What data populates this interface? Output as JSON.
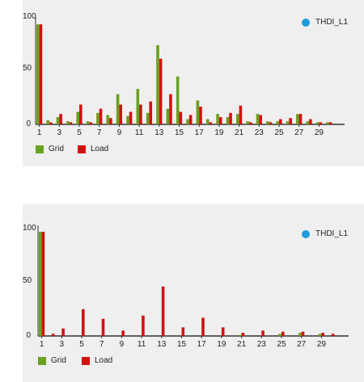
{
  "colors": {
    "grid": "#6aa121",
    "load": "#d11111",
    "badge": "#1f9bdc",
    "panel": "#efefef"
  },
  "chart_data": [
    {
      "type": "bar",
      "badge": "THDI_L1",
      "categories": [
        1,
        2,
        3,
        4,
        5,
        6,
        7,
        8,
        9,
        10,
        11,
        12,
        13,
        14,
        15,
        16,
        17,
        18,
        19,
        20,
        21,
        22,
        23,
        24,
        25,
        26,
        27,
        28,
        29,
        30
      ],
      "x_tick_labels": [
        "1",
        "3",
        "5",
        "7",
        "9",
        "11",
        "13",
        "15",
        "17",
        "19",
        "21",
        "23",
        "25",
        "27",
        "29"
      ],
      "y_ticks": [
        "100",
        "50",
        "0"
      ],
      "ylim": [
        0,
        100
      ],
      "legend_placement": "bottom-left",
      "series": [
        {
          "name": "Grid",
          "values": [
            96,
            4,
            7,
            3,
            12,
            3,
            11,
            9,
            29,
            8,
            34,
            11,
            76,
            15,
            46,
            5,
            23,
            5,
            10,
            7,
            10,
            3,
            10,
            3,
            3,
            3,
            10,
            3,
            2,
            2
          ]
        },
        {
          "name": "Load",
          "values": [
            96,
            2,
            10,
            2,
            19,
            2,
            15,
            6,
            19,
            12,
            19,
            22,
            63,
            29,
            12,
            9,
            17,
            2,
            7,
            11,
            18,
            2,
            9,
            2,
            5,
            6,
            10,
            5,
            2,
            2
          ]
        }
      ]
    },
    {
      "type": "bar",
      "badge": "THDI_L1",
      "categories": [
        1,
        2,
        3,
        4,
        5,
        6,
        7,
        8,
        9,
        10,
        11,
        12,
        13,
        14,
        15,
        16,
        17,
        18,
        19,
        20,
        21,
        22,
        23,
        24,
        25,
        26,
        27,
        28,
        29,
        30
      ],
      "x_tick_labels": [
        "1",
        "3",
        "5",
        "7",
        "9",
        "11",
        "13",
        "15",
        "17",
        "19",
        "21",
        "23",
        "25",
        "27",
        "29"
      ],
      "y_ticks": [
        "100",
        "50",
        "0"
      ],
      "ylim": [
        0,
        100
      ],
      "legend_placement": "bottom-left",
      "series": [
        {
          "name": "Grid",
          "values": [
            97,
            0,
            0,
            0,
            0,
            0,
            0,
            0,
            0,
            0,
            0,
            0,
            0,
            0,
            0,
            0,
            0,
            0,
            0,
            0,
            1,
            0,
            0,
            0,
            2,
            0,
            3,
            0,
            2,
            0
          ]
        },
        {
          "name": "Load",
          "values": [
            97,
            2,
            7,
            0,
            25,
            0,
            16,
            0,
            5,
            0,
            19,
            0,
            46,
            0,
            8,
            0,
            17,
            0,
            8,
            0,
            3,
            0,
            5,
            0,
            4,
            0,
            4,
            0,
            3,
            2
          ]
        }
      ]
    }
  ]
}
